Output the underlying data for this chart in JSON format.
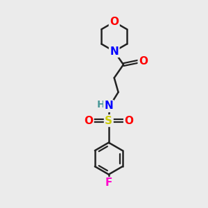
{
  "bg_color": "#ebebeb",
  "bond_color": "#222222",
  "atom_colors": {
    "O": "#ff0000",
    "N": "#0000ff",
    "S": "#cccc00",
    "F": "#ff00cc",
    "H": "#4a9999",
    "C": "#222222"
  },
  "bond_width": 1.8,
  "fig_size": [
    3.0,
    3.0
  ],
  "dpi": 100
}
